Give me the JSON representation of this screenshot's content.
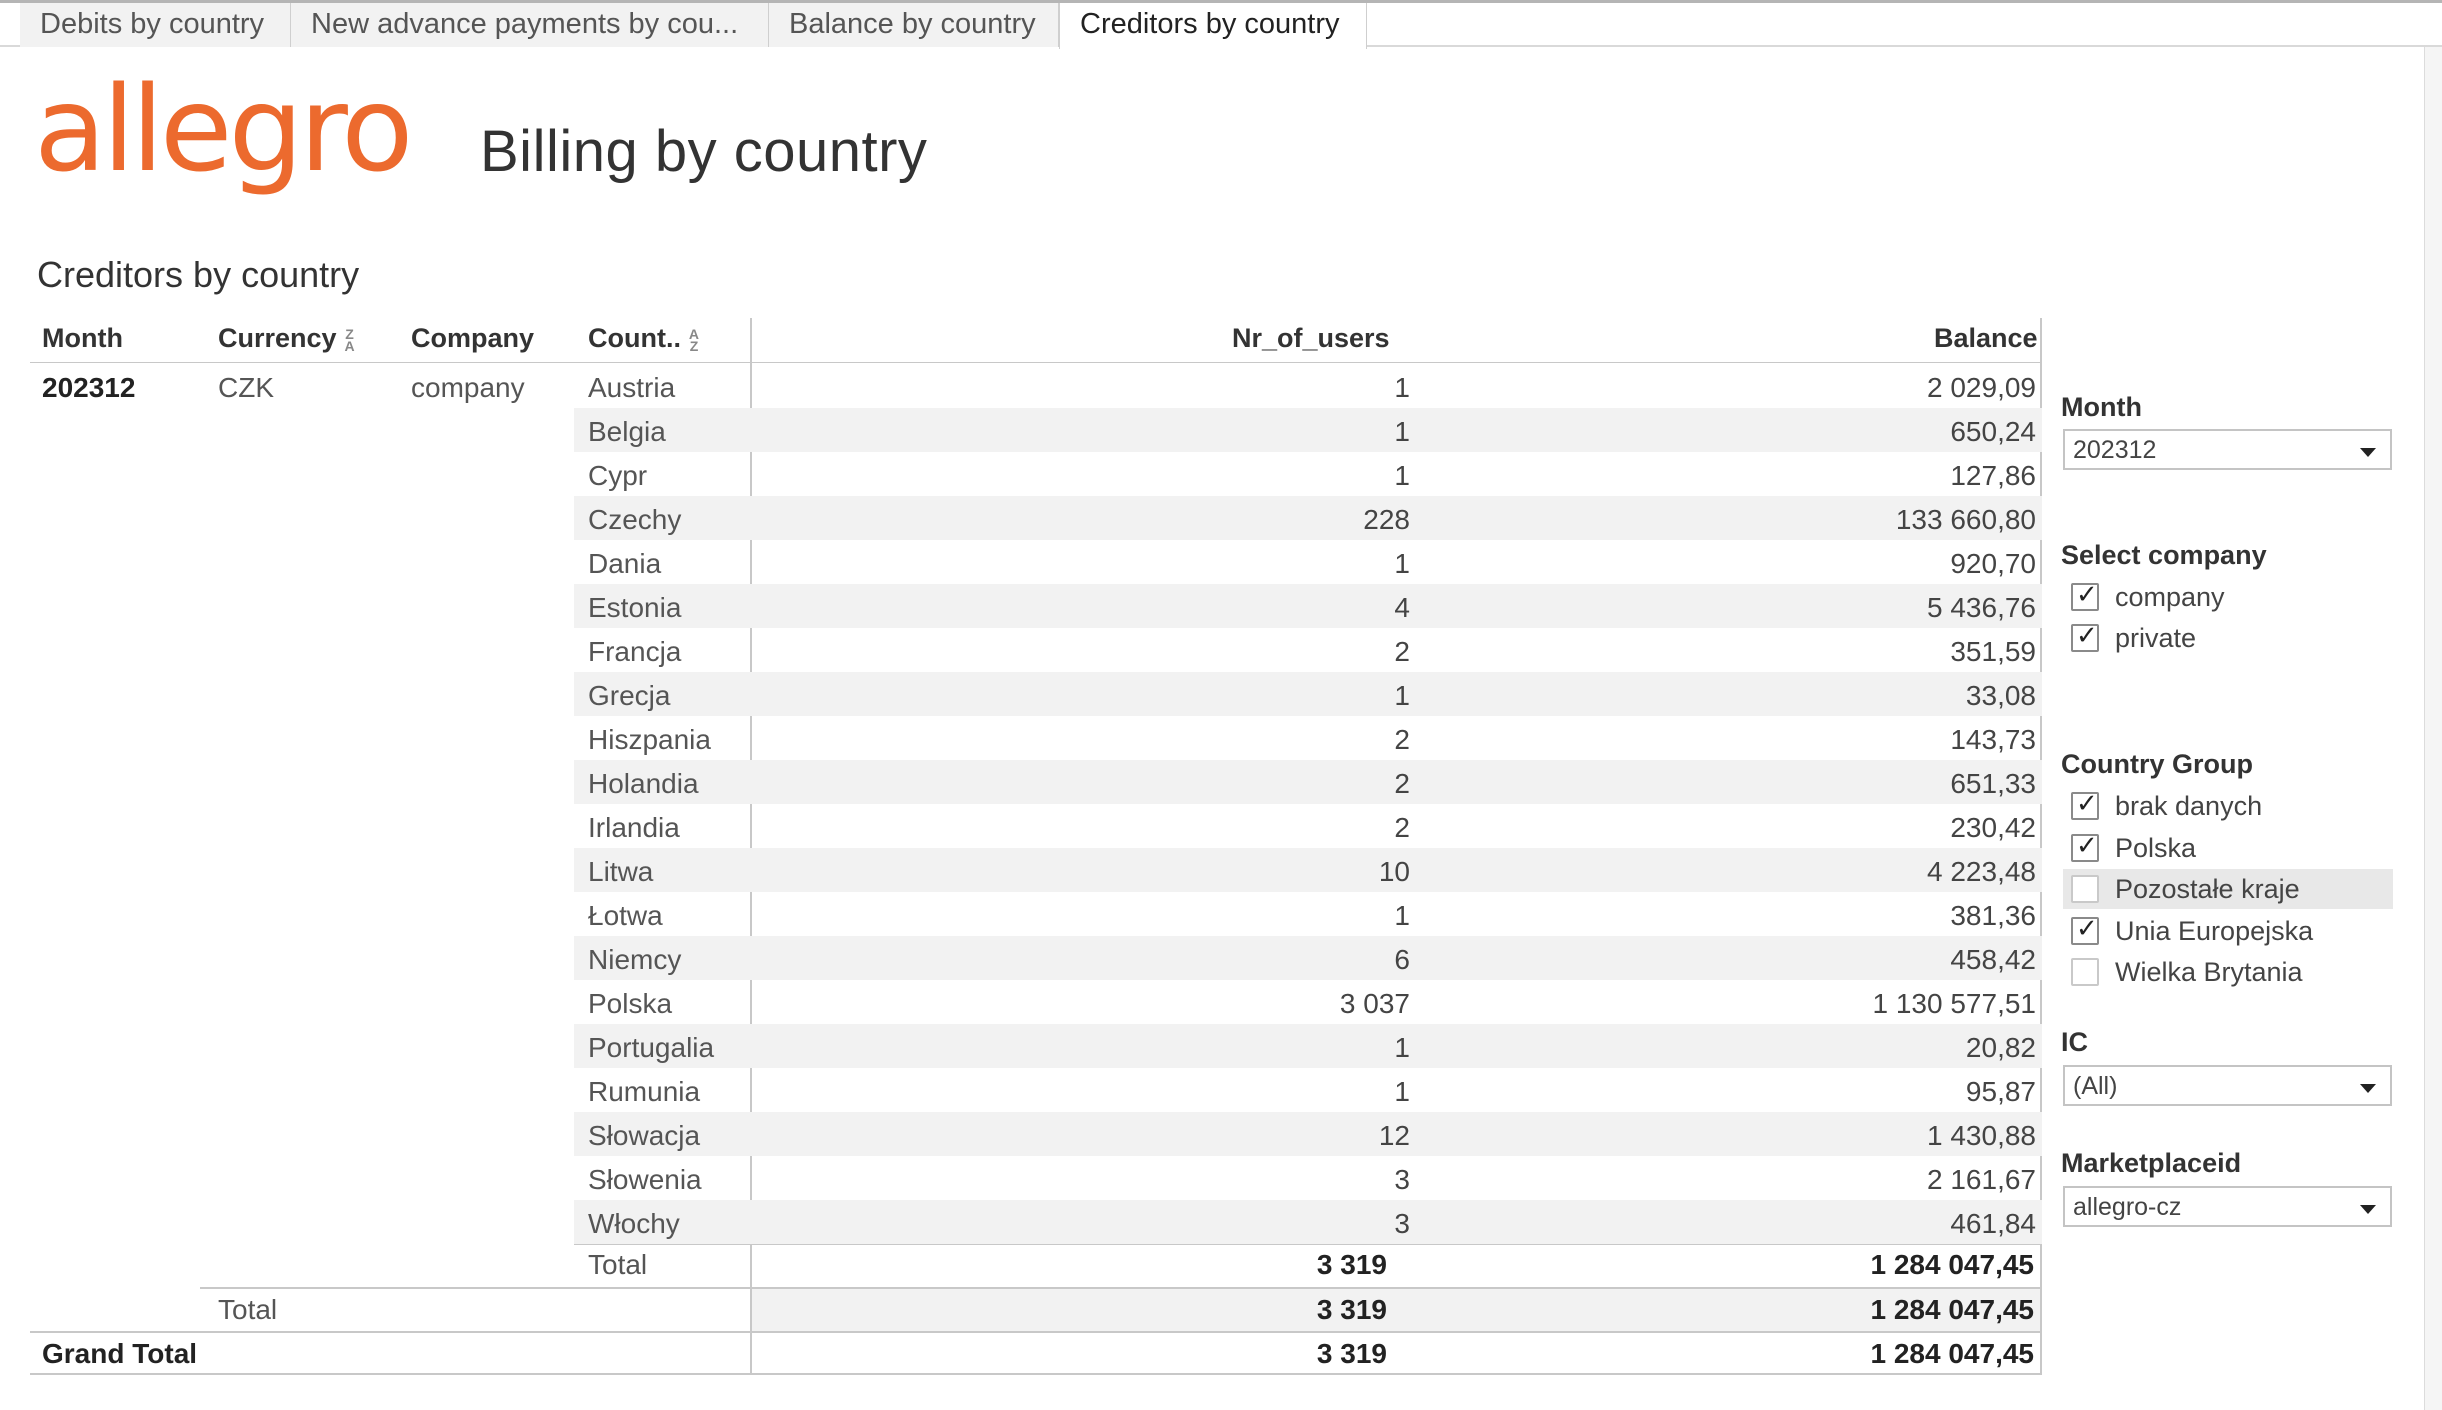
{
  "tabs": [
    {
      "label": "Debits by country"
    },
    {
      "label": "New advance payments by cou..."
    },
    {
      "label": "Balance by country"
    },
    {
      "label": "Creditors by country"
    }
  ],
  "brand": {
    "logo_text": "allegro",
    "color": "#ec6a2e"
  },
  "page_title": "Billing by country",
  "section_title": "Creditors by country",
  "table": {
    "headers": {
      "month": "Month",
      "currency": "Currency",
      "company": "Company",
      "country": "Count..",
      "nr_users": "Nr_of_users",
      "balance": "Balance"
    },
    "month": "202312",
    "currency": "CZK",
    "company": "company",
    "rows": [
      {
        "country": "Austria",
        "nr_users": "1",
        "balance": "2 029,09"
      },
      {
        "country": "Belgia",
        "nr_users": "1",
        "balance": "650,24"
      },
      {
        "country": "Cypr",
        "nr_users": "1",
        "balance": "127,86"
      },
      {
        "country": "Czechy",
        "nr_users": "228",
        "balance": "133 660,80"
      },
      {
        "country": "Dania",
        "nr_users": "1",
        "balance": "920,70"
      },
      {
        "country": "Estonia",
        "nr_users": "4",
        "balance": "5 436,76"
      },
      {
        "country": "Francja",
        "nr_users": "2",
        "balance": "351,59"
      },
      {
        "country": "Grecja",
        "nr_users": "1",
        "balance": "33,08"
      },
      {
        "country": "Hiszpania",
        "nr_users": "2",
        "balance": "143,73"
      },
      {
        "country": "Holandia",
        "nr_users": "2",
        "balance": "651,33"
      },
      {
        "country": "Irlandia",
        "nr_users": "2",
        "balance": "230,42"
      },
      {
        "country": "Litwa",
        "nr_users": "10",
        "balance": "4 223,48"
      },
      {
        "country": "Łotwa",
        "nr_users": "1",
        "balance": "381,36"
      },
      {
        "country": "Niemcy",
        "nr_users": "6",
        "balance": "458,42"
      },
      {
        "country": "Polska",
        "nr_users": "3 037",
        "balance": "1 130 577,51"
      },
      {
        "country": "Portugalia",
        "nr_users": "1",
        "balance": "20,82"
      },
      {
        "country": "Rumunia",
        "nr_users": "1",
        "balance": "95,87"
      },
      {
        "country": "Słowacja",
        "nr_users": "12",
        "balance": "1 430,88"
      },
      {
        "country": "Słowenia",
        "nr_users": "3",
        "balance": "2 161,67"
      },
      {
        "country": "Włochy",
        "nr_users": "3",
        "balance": "461,84"
      }
    ],
    "country_total": {
      "label": "Total",
      "nr_users": "3 319",
      "balance": "1 284 047,45"
    },
    "currency_total": {
      "label": "Total",
      "nr_users": "3 319",
      "balance": "1 284 047,45"
    },
    "grand_total": {
      "label": "Grand Total",
      "nr_users": "3 319",
      "balance": "1 284 047,45"
    }
  },
  "filters": {
    "month": {
      "label": "Month",
      "value": "202312"
    },
    "select_company": {
      "label": "Select company",
      "options": [
        {
          "label": "company",
          "checked": true
        },
        {
          "label": "private",
          "checked": true
        }
      ]
    },
    "country_group": {
      "label": "Country Group",
      "options": [
        {
          "label": "brak danych",
          "checked": true
        },
        {
          "label": "Polska",
          "checked": true
        },
        {
          "label": "Pozostałe kraje",
          "checked": false
        },
        {
          "label": "Unia Europejska",
          "checked": true
        },
        {
          "label": "Wielka Brytania",
          "checked": false
        }
      ]
    },
    "ic": {
      "label": "IC",
      "value": "(All)"
    },
    "marketplace": {
      "label": "Marketplaceid",
      "value": "allegro-cz"
    }
  }
}
